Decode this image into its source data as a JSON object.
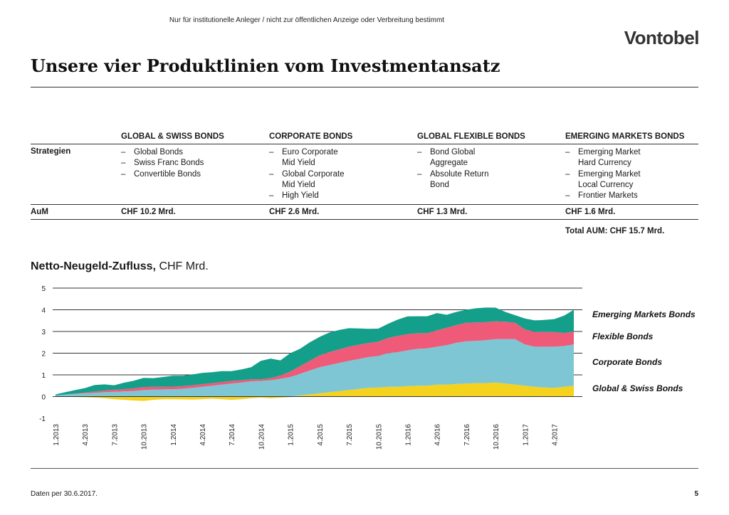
{
  "header": {
    "disclaimer": "Nur für institutionelle Anleger / nicht zur öffentlichen Anzeige oder Verbreitung bestimmt",
    "logo": "Vontobel",
    "title": "Unsere vier Produktlinien vom Investmentansatz"
  },
  "table": {
    "columns": [
      "GLOBAL & SWISS BONDS",
      "CORPORATE BONDS",
      "GLOBAL FLEXIBLE BONDS",
      "EMERGING MARKETS BONDS"
    ],
    "strategies_label": "Strategien",
    "strategies": [
      [
        "Global Bonds",
        "Swiss Franc Bonds",
        "Convertible Bonds"
      ],
      [
        "Euro Corporate\nMid Yield",
        "Global Corporate\nMid Yield",
        "High Yield"
      ],
      [
        "Bond Global\nAggregate",
        "Absolute Return\nBond"
      ],
      [
        "Emerging Market\nHard Currency",
        "Emerging Market\nLocal Currency",
        "Frontier Markets"
      ]
    ],
    "aum_label": "AuM",
    "aum": [
      "CHF 10.2 Mrd.",
      "CHF 2.6 Mrd.",
      "CHF 1.3 Mrd.",
      "CHF 1.6 Mrd."
    ],
    "total": "Total AUM: CHF 15.7 Mrd."
  },
  "chart_title": {
    "bold": "Netto-Neugeld-Zufluss,",
    "rest": " CHF Mrd."
  },
  "footer": {
    "note": "Daten per 30.6.2017.",
    "page": "5"
  },
  "chart_data": {
    "type": "area",
    "stacked": true,
    "ylim": [
      -1,
      5
    ],
    "yticks": [
      "5",
      "4",
      "3",
      "2",
      "1",
      "0",
      "-1"
    ],
    "x_tick_labels": [
      "1.2013",
      "4.2013",
      "7.2013",
      "10.2013",
      "1.2014",
      "4.2014",
      "7.2014",
      "10.2014",
      "1.2015",
      "4.2015",
      "7.2015",
      "10.2015",
      "1.2016",
      "4.2016",
      "7.2016",
      "10.2016",
      "1.2017",
      "4.2017"
    ],
    "x": [
      "1.2013",
      "2.2013",
      "3.2013",
      "4.2013",
      "5.2013",
      "6.2013",
      "7.2013",
      "8.2013",
      "9.2013",
      "10.2013",
      "11.2013",
      "12.2013",
      "1.2014",
      "2.2014",
      "3.2014",
      "4.2014",
      "5.2014",
      "6.2014",
      "7.2014",
      "8.2014",
      "9.2014",
      "10.2014",
      "11.2014",
      "12.2014",
      "1.2015",
      "2.2015",
      "3.2015",
      "4.2015",
      "5.2015",
      "6.2015",
      "7.2015",
      "8.2015",
      "9.2015",
      "10.2015",
      "11.2015",
      "12.2015",
      "1.2016",
      "2.2016",
      "3.2016",
      "4.2016",
      "5.2016",
      "6.2016",
      "7.2016",
      "8.2016",
      "9.2016",
      "10.2016",
      "11.2016",
      "12.2016",
      "1.2017",
      "2.2017",
      "3.2017",
      "4.2017",
      "5.2017",
      "6.2017"
    ],
    "grid": true,
    "legend_position": "right",
    "series": [
      {
        "name": "Global & Swiss Bonds",
        "color": "#f5d21e",
        "values": [
          0,
          0,
          -0.02,
          -0.03,
          -0.05,
          -0.08,
          -0.12,
          -0.15,
          -0.18,
          -0.2,
          -0.15,
          -0.12,
          -0.12,
          -0.13,
          -0.14,
          -0.12,
          -0.1,
          -0.12,
          -0.15,
          -0.12,
          -0.08,
          -0.05,
          -0.08,
          -0.05,
          -0.02,
          0.05,
          0.1,
          0.15,
          0.2,
          0.25,
          0.3,
          0.35,
          0.4,
          0.42,
          0.45,
          0.45,
          0.48,
          0.5,
          0.5,
          0.55,
          0.55,
          0.58,
          0.6,
          0.62,
          0.62,
          0.65,
          0.6,
          0.55,
          0.5,
          0.45,
          0.42,
          0.4,
          0.45,
          0.5
        ]
      },
      {
        "name": "Corporate Bonds",
        "color": "#7ec6d4",
        "values": [
          0.05,
          0.1,
          0.12,
          0.15,
          0.17,
          0.2,
          0.22,
          0.24,
          0.26,
          0.3,
          0.32,
          0.33,
          0.34,
          0.36,
          0.4,
          0.45,
          0.5,
          0.55,
          0.6,
          0.65,
          0.7,
          0.72,
          0.75,
          0.82,
          0.9,
          1.0,
          1.1,
          1.2,
          1.25,
          1.3,
          1.35,
          1.38,
          1.42,
          1.45,
          1.55,
          1.6,
          1.65,
          1.7,
          1.72,
          1.75,
          1.82,
          1.9,
          1.95,
          1.95,
          1.98,
          2.0,
          2.05,
          2.1,
          1.9,
          1.85,
          1.88,
          1.9,
          1.88,
          1.9
        ]
      },
      {
        "name": "Flexible Bonds",
        "color": "#ee5a78",
        "values": [
          0,
          0,
          0.02,
          0.04,
          0.06,
          0.08,
          0.1,
          0.1,
          0.12,
          0.14,
          0.13,
          0.12,
          0.12,
          0.12,
          0.12,
          0.12,
          0.12,
          0.12,
          0.12,
          0.1,
          0.1,
          0.08,
          0.1,
          0.15,
          0.25,
          0.35,
          0.45,
          0.55,
          0.6,
          0.62,
          0.65,
          0.66,
          0.65,
          0.66,
          0.7,
          0.75,
          0.75,
          0.72,
          0.7,
          0.75,
          0.8,
          0.82,
          0.85,
          0.85,
          0.83,
          0.82,
          0.8,
          0.75,
          0.7,
          0.68,
          0.68,
          0.67,
          0.6,
          0.6
        ]
      },
      {
        "name": "Emerging Markets Bonds",
        "color": "#139f8a",
        "values": [
          0.05,
          0.1,
          0.16,
          0.2,
          0.3,
          0.28,
          0.2,
          0.3,
          0.35,
          0.42,
          0.4,
          0.45,
          0.5,
          0.48,
          0.5,
          0.52,
          0.5,
          0.5,
          0.45,
          0.5,
          0.55,
          0.85,
          0.9,
          0.7,
          0.85,
          0.8,
          0.85,
          0.85,
          0.9,
          0.9,
          0.85,
          0.75,
          0.65,
          0.6,
          0.65,
          0.75,
          0.82,
          0.78,
          0.78,
          0.8,
          0.6,
          0.6,
          0.6,
          0.65,
          0.67,
          0.63,
          0.45,
          0.35,
          0.5,
          0.53,
          0.55,
          0.6,
          0.8,
          1.0
        ]
      }
    ]
  }
}
